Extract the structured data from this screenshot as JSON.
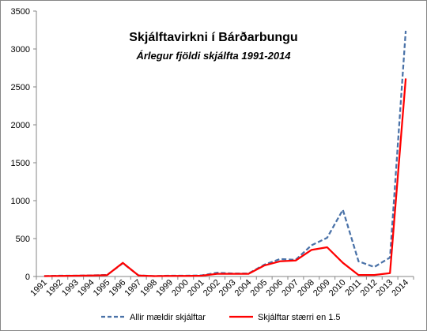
{
  "chart_data": {
    "type": "line",
    "title": "Skjálftavirkni í Bárðarbungu",
    "subtitle": "Árlegur fjöldi skjálfta 1991-2014",
    "x": [
      "1991",
      "1992",
      "1993",
      "1994",
      "1995",
      "1996",
      "1997",
      "1998",
      "1999",
      "2000",
      "2001",
      "2002",
      "2003",
      "2004",
      "2005",
      "2006",
      "2007",
      "2008",
      "2009",
      "2010",
      "2011",
      "2012",
      "2013",
      "2014"
    ],
    "ylim": [
      0,
      3500
    ],
    "yticks": [
      "0",
      "500",
      "1000",
      "1500",
      "2000",
      "2500",
      "3000",
      "3500"
    ],
    "grid": false,
    "legend_position": "bottom",
    "series": [
      {
        "name": "Allir mældir skjálftar",
        "color": "#4a72a8",
        "style": "dashed",
        "values": [
          5,
          10,
          10,
          15,
          20,
          175,
          15,
          5,
          10,
          10,
          15,
          50,
          40,
          40,
          155,
          230,
          220,
          410,
          510,
          880,
          200,
          125,
          250,
          3240
        ]
      },
      {
        "name": "Skjálftar stærri en 1.5",
        "color": "#ff0000",
        "style": "solid",
        "values": [
          5,
          8,
          10,
          12,
          18,
          180,
          12,
          5,
          8,
          8,
          10,
          35,
          35,
          35,
          145,
          200,
          210,
          350,
          385,
          180,
          20,
          20,
          45,
          2610
        ]
      }
    ]
  }
}
